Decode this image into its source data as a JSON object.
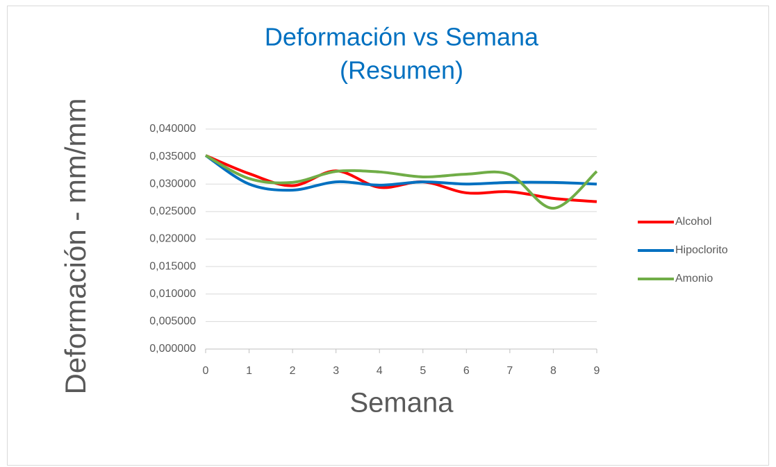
{
  "chart_data": {
    "type": "line",
    "title": [
      "Deformación vs Semana",
      "(Resumen)"
    ],
    "xlabel": "Semana",
    "ylabel": "Deformación - mm/mm",
    "x": [
      0,
      1,
      2,
      3,
      4,
      5,
      6,
      7,
      8,
      9
    ],
    "series": [
      {
        "name": "Alcohol",
        "color": "#ff0000",
        "values": [
          0.0352,
          0.0319,
          0.0297,
          0.0324,
          0.0294,
          0.0304,
          0.0284,
          0.0286,
          0.0274,
          0.0268
        ]
      },
      {
        "name": "Hipoclorito",
        "color": "#0070c0",
        "values": [
          0.0352,
          0.03,
          0.0289,
          0.0304,
          0.0298,
          0.0304,
          0.03,
          0.0303,
          0.0303,
          0.03
        ]
      },
      {
        "name": "Amonio",
        "color": "#70ad47",
        "values": [
          0.0352,
          0.031,
          0.0303,
          0.0323,
          0.0322,
          0.0313,
          0.0318,
          0.0317,
          0.0256,
          0.0323
        ]
      }
    ],
    "xlim": [
      0,
      9
    ],
    "xticks": [
      0,
      1,
      2,
      3,
      4,
      5,
      6,
      7,
      8,
      9
    ],
    "ylim": [
      0,
      0.04
    ],
    "yticks": [
      {
        "value": 0,
        "label": "0,000000"
      },
      {
        "value": 0.005,
        "label": "0,005000"
      },
      {
        "value": 0.01,
        "label": "0,010000"
      },
      {
        "value": 0.015,
        "label": "0,015000"
      },
      {
        "value": 0.02,
        "label": "0,020000"
      },
      {
        "value": 0.025,
        "label": "0,025000"
      },
      {
        "value": 0.03,
        "label": "0,030000"
      },
      {
        "value": 0.035,
        "label": "0,035000"
      },
      {
        "value": 0.04,
        "label": "0,040000"
      }
    ],
    "grid": true,
    "smooth": true,
    "legend": "right"
  }
}
